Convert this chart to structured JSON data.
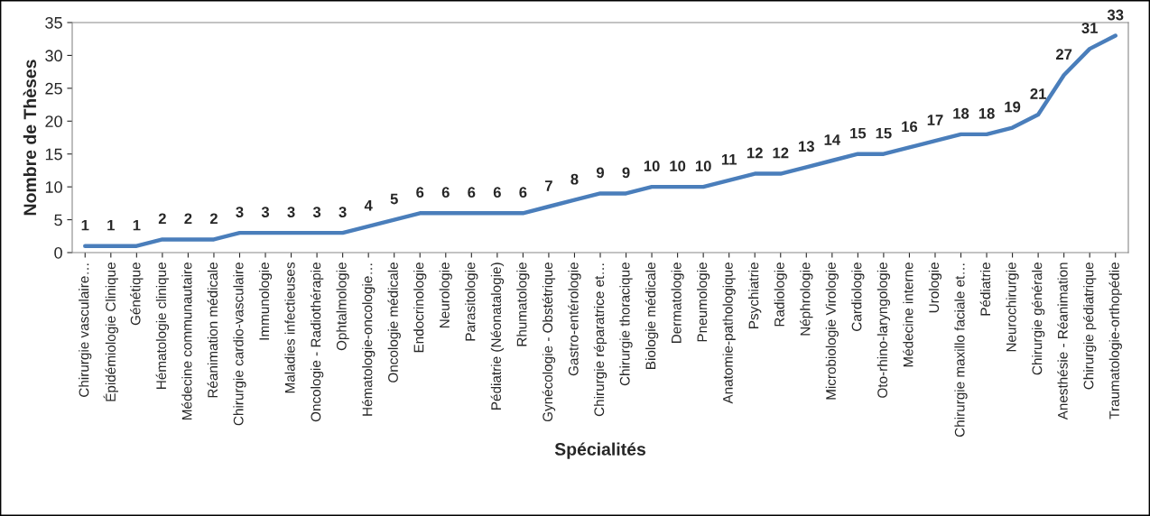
{
  "chart_data": {
    "type": "line",
    "xlabel": "Spécialités",
    "ylabel": "Nombre de Thèses",
    "categories": [
      "Chirurgie vasculaire…",
      "Épidémiologie Clinique",
      "Génétique",
      "Hématologie clinique",
      "Médecine communautaire",
      "Réanimation médicale",
      "Chirurgie cardio-vasculaire",
      "Immunologie",
      "Maladies infectieuses",
      "Oncologie - Radiothérapie",
      "Ophtalmologie",
      "Hématologie-oncologie…",
      "Oncologie médicale",
      "Endocrinologie",
      "Neurologie",
      "Parasitologie",
      "Pédiatrie (Néonatalogie)",
      "Rhumatologie",
      "Gynécologie - Obstétrique",
      "Gastro-entérologie",
      "Chirurgie réparatrice et…",
      "Chirurgie thoracique",
      "Biologie médicale",
      "Dermatologie",
      "Pneumologie",
      "Anatomie-pathologique",
      "Psychiatrie",
      "Radiologie",
      "Néphrologie",
      "Microbiologie Virologie",
      "Cardiologie",
      "Oto-rhino-laryngologie",
      "Médecine interne",
      "Urologie",
      "Chirurgie maxillo faciale et…",
      "Pédiatrie",
      "Neurochirurgie",
      "Chirurgie générale",
      "Anesthésie - Réanimation",
      "Chirurgie pédiatrique",
      "Traumatologie-orthopédie"
    ],
    "series": [
      {
        "color": "#4a7ebb",
        "values": [
          1,
          1,
          1,
          2,
          2,
          2,
          3,
          3,
          3,
          3,
          3,
          4,
          5,
          6,
          6,
          6,
          6,
          6,
          7,
          8,
          9,
          9,
          10,
          10,
          10,
          11,
          12,
          12,
          13,
          14,
          15,
          15,
          16,
          17,
          18,
          18,
          19,
          21,
          27,
          31,
          33
        ]
      }
    ],
    "ylim": [
      0,
      35
    ],
    "yticks": [
      0,
      5,
      10,
      15,
      20,
      25,
      30,
      35
    ],
    "data_labels": true,
    "grid": false,
    "marker": "none",
    "line_style": "solid"
  }
}
